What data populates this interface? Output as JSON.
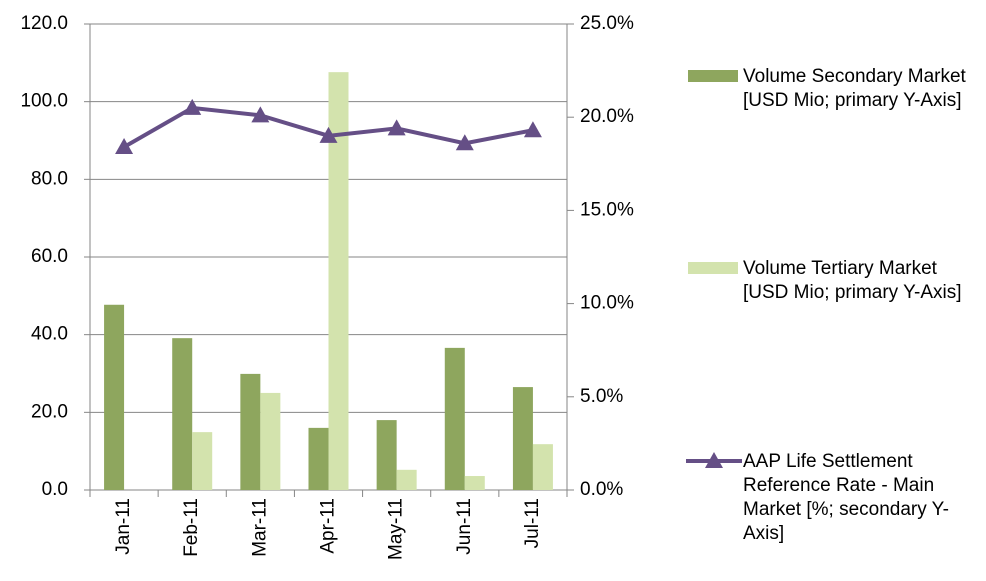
{
  "chart_data": {
    "type": "bar-line",
    "categories": [
      "Jan-11",
      "Feb-11",
      "Mar-11",
      "Apr-11",
      "May-11",
      "Jun-11",
      "Jul-11"
    ],
    "series": [
      {
        "name": "Volume Secondary Market [USD Mio; primary Y-Axis]",
        "type": "bar",
        "color": "#8ea65e",
        "values": [
          47.7,
          39.1,
          29.9,
          16.0,
          18.0,
          36.6,
          26.5
        ]
      },
      {
        "name": "Volume Tertiary Market [USD Mio; primary Y-Axis]",
        "type": "bar",
        "color": "#d3e3ad",
        "values": [
          null,
          14.9,
          25.0,
          107.6,
          5.2,
          3.6,
          11.8
        ]
      },
      {
        "name": "AAP Life Settlement Reference Rate - Main Market [%; secondary Y-Axis]",
        "type": "line",
        "axis": "y2",
        "color": "#654f86",
        "values": [
          18.4,
          20.5,
          20.1,
          19.0,
          19.4,
          18.6,
          19.3
        ]
      }
    ],
    "ylim": [
      0,
      120
    ],
    "yticks": [
      {
        "value": 0,
        "label": "0.0"
      },
      {
        "value": 20,
        "label": "20.0"
      },
      {
        "value": 40,
        "label": "40.0"
      },
      {
        "value": 60,
        "label": "60.0"
      },
      {
        "value": 80,
        "label": "80.0"
      },
      {
        "value": 100,
        "label": "100.0"
      },
      {
        "value": 120,
        "label": "120.0"
      }
    ],
    "y2lim": [
      0,
      25
    ],
    "y2ticks": [
      {
        "value": 0,
        "label": "0.0%"
      },
      {
        "value": 5,
        "label": "5.0%"
      },
      {
        "value": 10,
        "label": "10.0%"
      },
      {
        "value": 15,
        "label": "15.0%"
      },
      {
        "value": 20,
        "label": "20.0%"
      },
      {
        "value": 25,
        "label": "25.0%"
      }
    ],
    "grid": true,
    "legend": "right"
  }
}
